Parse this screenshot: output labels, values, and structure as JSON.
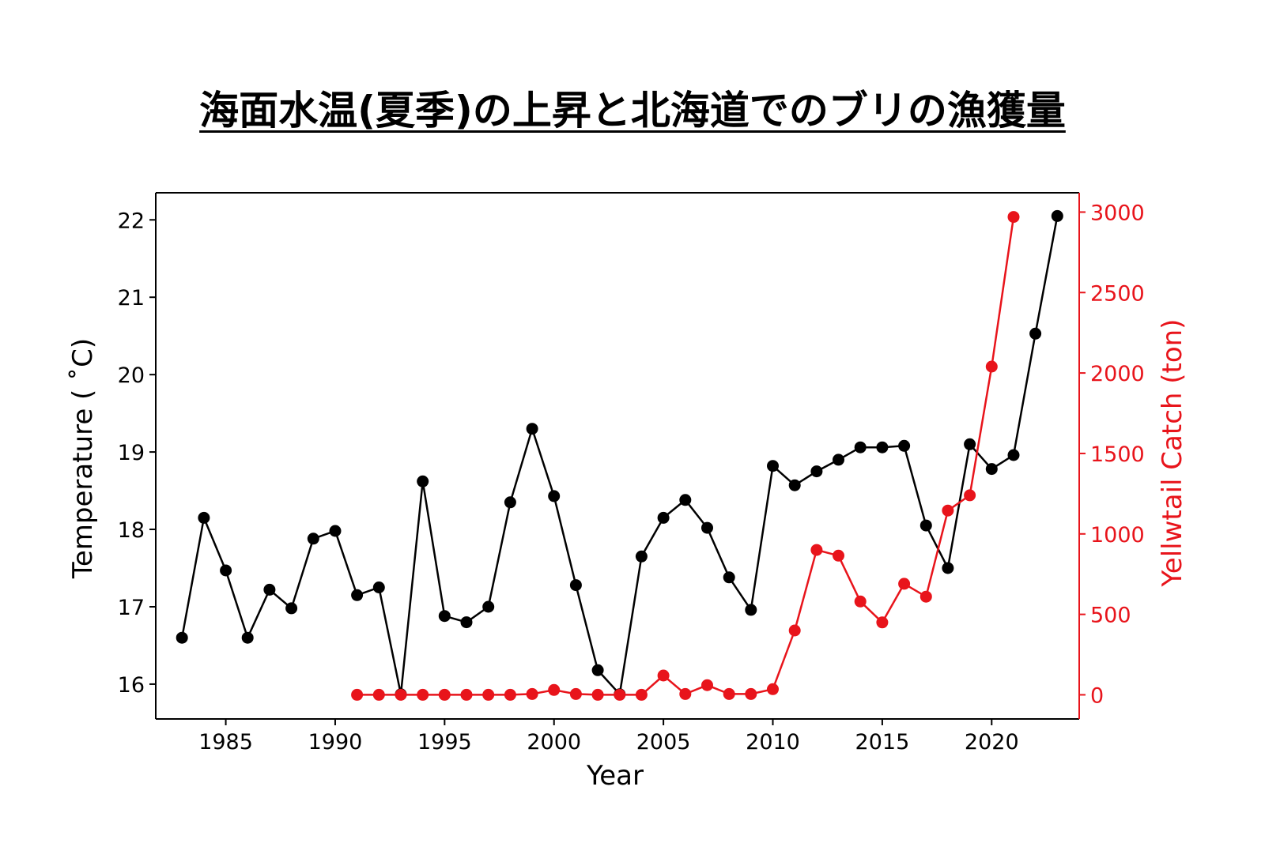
{
  "title": "海面水温(夏季)の上昇と北海道でのブリの漁獲量",
  "colors": {
    "temperature": "#000000",
    "catch": "#e8141b",
    "axis": "#000000"
  },
  "chart_data": {
    "type": "line",
    "title": "海面水温(夏季)の上昇と北海道でのブリの漁獲量",
    "xlabel": "Year",
    "ylabel": "Temperature ( ˚C)",
    "y2label": "Yellwtail Catch (ton)",
    "xlim": [
      1981.8,
      2024.0
    ],
    "ylim": [
      15.55,
      22.35
    ],
    "y2lim": [
      -150,
      3120
    ],
    "xticks": [
      1985,
      1990,
      1995,
      2000,
      2005,
      2010,
      2015,
      2020
    ],
    "yticks": [
      16,
      17,
      18,
      19,
      20,
      21,
      22
    ],
    "y2ticks": [
      0,
      500,
      1000,
      1500,
      2000,
      2500,
      3000
    ],
    "grid": false,
    "legend": "none",
    "series": [
      {
        "axis": "left",
        "color": "#000000",
        "x": [
          1983,
          1984,
          1985,
          1986,
          1987,
          1988,
          1989,
          1990,
          1991,
          1992,
          1993,
          1994,
          1995,
          1996,
          1997,
          1998,
          1999,
          2000,
          2001,
          2002,
          2003,
          2004,
          2005,
          2006,
          2007,
          2008,
          2009,
          2010,
          2011,
          2012,
          2013,
          2014,
          2015,
          2016,
          2017,
          2018,
          2019,
          2020,
          2021,
          2022,
          2023
        ],
        "values": [
          16.6,
          18.15,
          17.47,
          16.6,
          17.22,
          16.98,
          17.88,
          17.98,
          17.15,
          17.25,
          15.87,
          18.62,
          16.88,
          16.8,
          17.0,
          18.35,
          19.3,
          18.43,
          17.28,
          16.18,
          15.87,
          17.65,
          18.15,
          18.38,
          18.02,
          17.38,
          16.96,
          18.82,
          18.57,
          18.75,
          18.9,
          19.06,
          19.06,
          19.08,
          18.05,
          17.5,
          19.1,
          18.78,
          18.96,
          20.53,
          22.05
        ]
      },
      {
        "axis": "right",
        "color": "#e8141b",
        "x": [
          1991,
          1992,
          1993,
          1994,
          1995,
          1996,
          1997,
          1998,
          1999,
          2000,
          2001,
          2002,
          2003,
          2004,
          2005,
          2006,
          2007,
          2008,
          2009,
          2010,
          2011,
          2012,
          2013,
          2014,
          2015,
          2016,
          2017,
          2018,
          2019,
          2020,
          2021
        ],
        "values": [
          0,
          0,
          0,
          0,
          0,
          0,
          0,
          0,
          5,
          30,
          5,
          0,
          0,
          0,
          120,
          5,
          60,
          5,
          5,
          35,
          400,
          900,
          865,
          580,
          450,
          690,
          610,
          1145,
          1240,
          2040,
          2970
        ]
      }
    ]
  }
}
